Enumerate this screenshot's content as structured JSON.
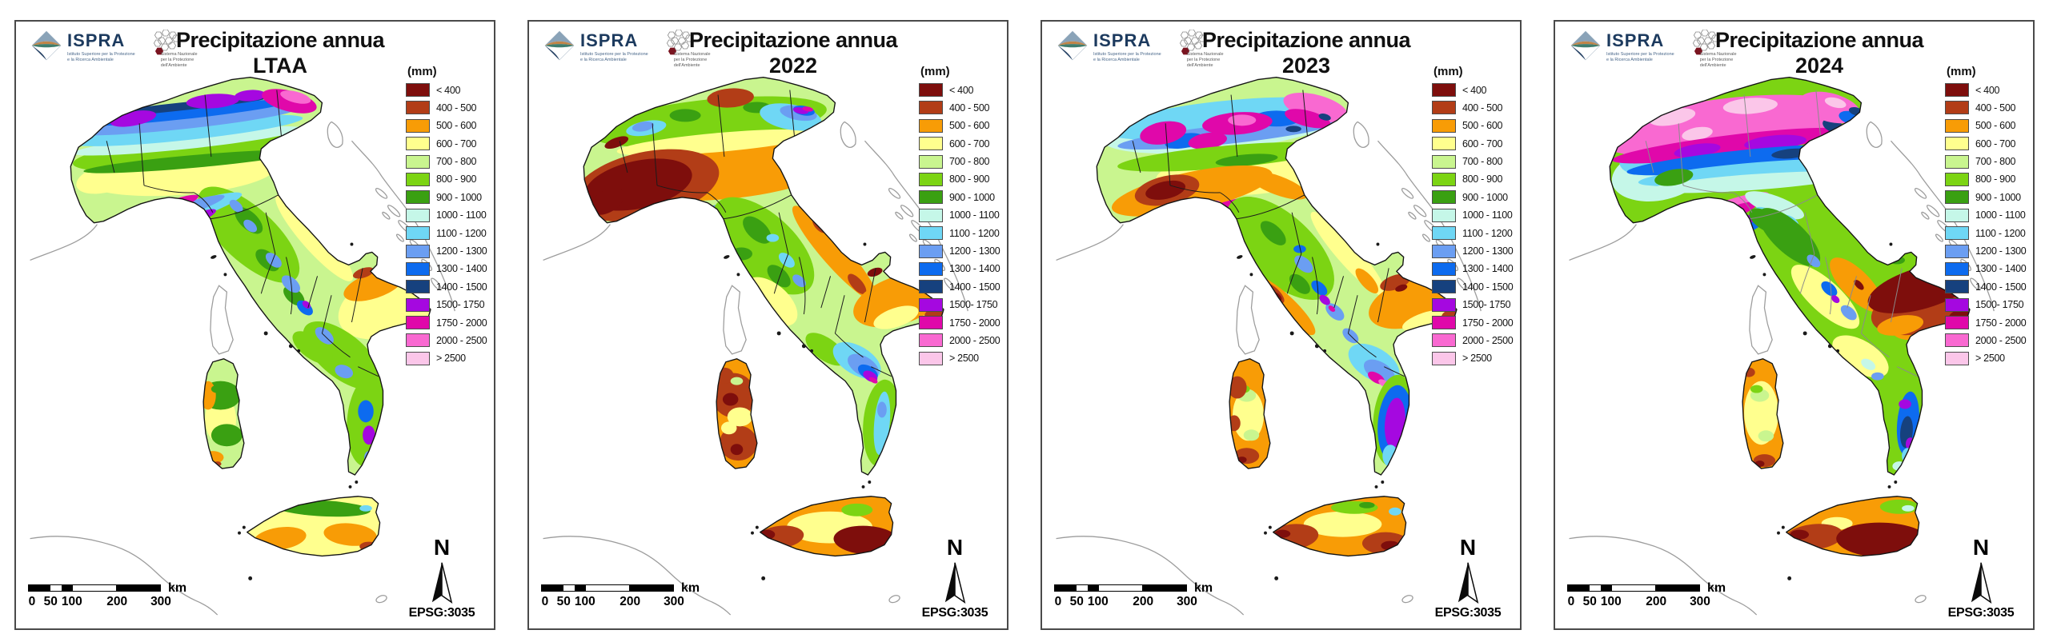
{
  "logos": {
    "ispra": {
      "name": "ISPRA",
      "tagline": "Istituto Superiore per la Protezione\ne la Ricerca Ambientale"
    },
    "snpa": {
      "tagline": "Sistema Nazionale\nper la Protezione\ndell'Ambiente"
    }
  },
  "legend": {
    "header": "(mm)",
    "entries": [
      {
        "label": "< 400",
        "color": "#7e0e0c"
      },
      {
        "label": "400 - 500",
        "color": "#b23d17"
      },
      {
        "label": "500 - 600",
        "color": "#f89c06"
      },
      {
        "label": "600 - 700",
        "color": "#ffff8e"
      },
      {
        "label": "700 - 800",
        "color": "#c9f58f"
      },
      {
        "label": "800 - 900",
        "color": "#7cd413"
      },
      {
        "label": "900 - 1000",
        "color": "#3aa012"
      },
      {
        "label": "1000 - 1100",
        "color": "#c5f7e8"
      },
      {
        "label": "1100 - 1200",
        "color": "#6fd7f5"
      },
      {
        "label": "1200 - 1300",
        "color": "#6b9ef2"
      },
      {
        "label": "1300 - 1400",
        "color": "#0d6bef"
      },
      {
        "label": "1400 - 1500",
        "color": "#16417e"
      },
      {
        "label": "1500- 1750",
        "color": "#a508e0"
      },
      {
        "label": "1750 - 2000",
        "color": "#e008aa"
      },
      {
        "label": "2000 - 2500",
        "color": "#f969d1"
      },
      {
        "label": "> 2500",
        "color": "#fbc6e9"
      }
    ]
  },
  "maps": [
    {
      "id": "ltaa",
      "title": "Precipitazione annua",
      "subtitle": "LTAA"
    },
    {
      "id": "y2022",
      "title": "Precipitazione annua",
      "subtitle": "2022"
    },
    {
      "id": "y2023",
      "title": "Precipitazione annua",
      "subtitle": "2023"
    },
    {
      "id": "y2024",
      "title": "Precipitazione annua",
      "subtitle": "2024"
    }
  ],
  "footer": {
    "scale_ticks": [
      "0",
      "50",
      "100",
      "200",
      "300"
    ],
    "scale_unit": "km",
    "north_label": "N",
    "epsg": "EPSG:3035"
  }
}
